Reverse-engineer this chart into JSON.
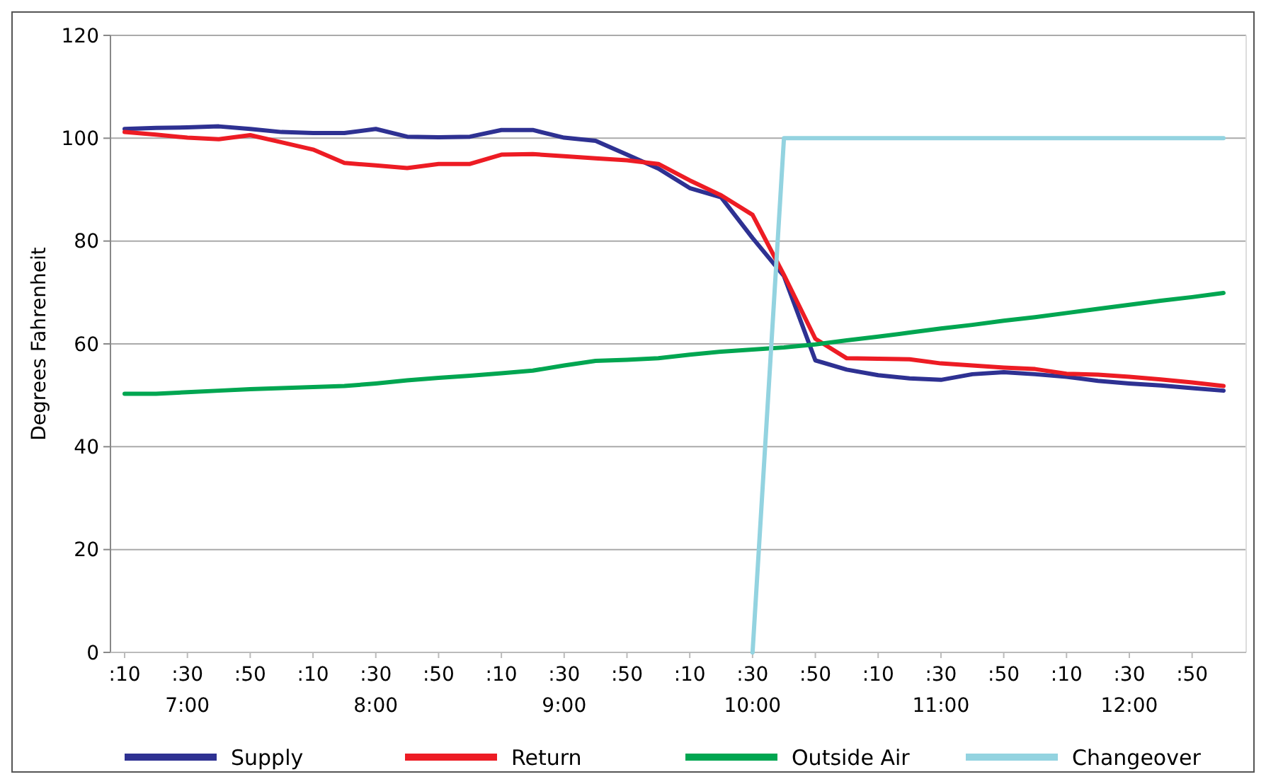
{
  "chart_data": {
    "type": "line",
    "ylabel": "Degrees Fahrenheit",
    "categories": [
      ":10",
      null,
      ":30\n7:00",
      null,
      ":50",
      null,
      ":10",
      null,
      ":30\n8:00",
      null,
      ":50",
      null,
      ":10",
      null,
      ":30\n9:00",
      null,
      ":50",
      null,
      ":10",
      null,
      ":30\n10:00",
      null,
      ":50",
      null,
      ":10",
      null,
      ":30\n11:00",
      null,
      ":50",
      null,
      ":10",
      null,
      ":30\n12:00",
      null,
      ":50",
      null
    ],
    "ylim": [
      0,
      120
    ],
    "yticks": [
      0,
      20,
      40,
      60,
      80,
      100,
      120
    ],
    "grid": "y",
    "legend": "bottom",
    "marker": "none",
    "line_style": "solid",
    "series": [
      {
        "name": "Supply",
        "color": "#2e3192",
        "values": [
          101.8,
          102.0,
          102.1,
          102.3,
          101.8,
          101.2,
          101,
          101,
          101.8,
          100.3,
          100.2,
          100.3,
          101.6,
          101.6,
          100.1,
          99.5,
          96.8,
          94.1,
          90.3,
          88.5,
          80.6,
          73.2,
          56.8,
          55.0,
          53.9,
          53.3,
          53,
          54.1,
          54.5,
          54.1,
          53.6,
          52.8,
          52.3,
          51.9,
          51.4,
          50.9
        ]
      },
      {
        "name": "Return",
        "color": "#ed1c24",
        "values": [
          101.2,
          100.7,
          100.1,
          99.8,
          100.6,
          99.2,
          97.8,
          95.2,
          94.7,
          94.2,
          95,
          95,
          96.8,
          96.9,
          96.5,
          96.1,
          95.7,
          95.0,
          91.8,
          88.9,
          85.1,
          73.4,
          61.0,
          57.2,
          57.1,
          57.0,
          56.2,
          55.8,
          55.4,
          55.1,
          54.2,
          54,
          53.6,
          53.1,
          52.5,
          51.8
        ]
      },
      {
        "name": "Outside Air",
        "color": "#00a651",
        "values": [
          50.3,
          50.3,
          50.6,
          50.9,
          51.2,
          51.4,
          51.6,
          51.8,
          52.3,
          52.9,
          53.4,
          53.8,
          54.3,
          54.8,
          55.8,
          56.7,
          56.9,
          57.2,
          57.9,
          58.5,
          58.9,
          59.3,
          59.9,
          60.7,
          61.4,
          62.2,
          63.0,
          63.7,
          64.5,
          65.2,
          66.0,
          66.8,
          67.6,
          68.4,
          69.1,
          69.9
        ]
      },
      {
        "name": "Changeover",
        "color": "#93d3e0",
        "values": [
          null,
          null,
          null,
          null,
          null,
          null,
          null,
          null,
          null,
          null,
          null,
          null,
          null,
          null,
          null,
          null,
          null,
          null,
          null,
          null,
          0,
          100,
          100,
          100,
          100,
          100,
          100,
          100,
          100,
          100,
          100,
          100,
          100,
          100,
          100,
          100
        ]
      }
    ]
  }
}
